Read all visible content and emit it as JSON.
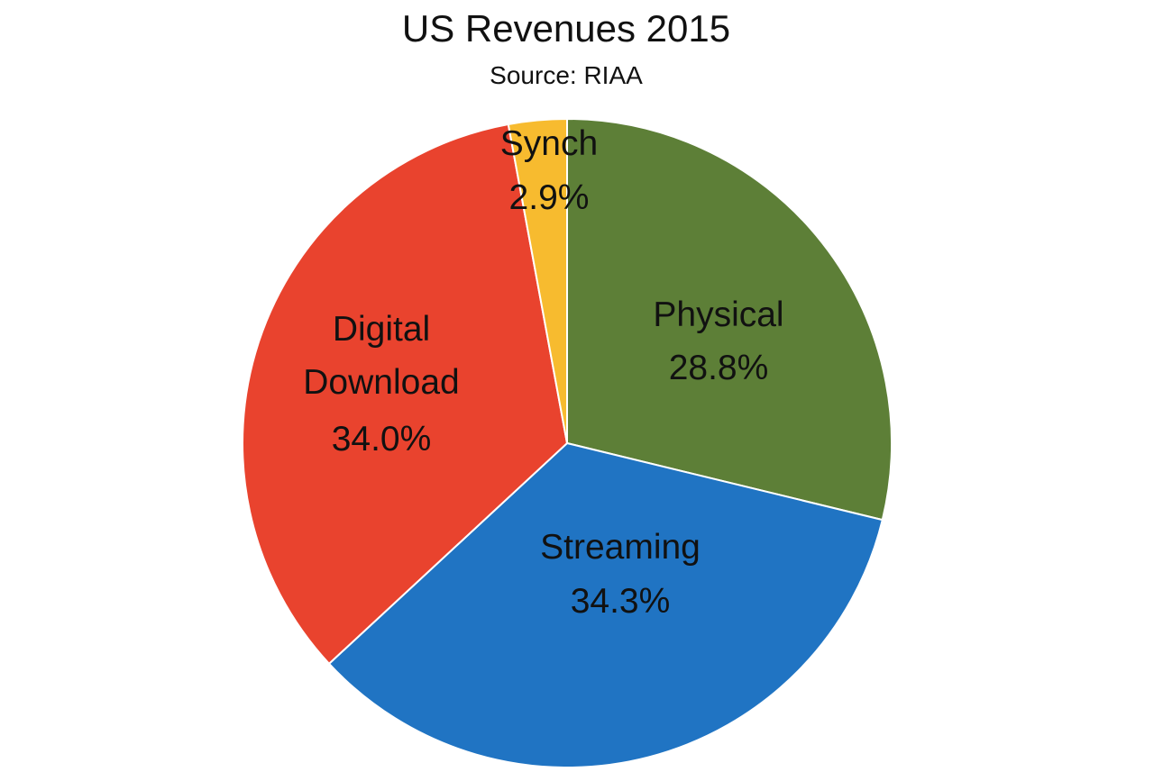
{
  "chart_data": {
    "type": "pie",
    "title": "US Revenues 2015",
    "subtitle": "Source: RIAA",
    "start_angle_deg": 0,
    "direction": "clockwise",
    "slices": [
      {
        "name": "Physical",
        "line1": "Physical",
        "line2": "",
        "value": 28.8,
        "value_label": "28.8%",
        "color": "#5d7f37"
      },
      {
        "name": "Streaming",
        "line1": "Streaming",
        "line2": "",
        "value": 34.3,
        "value_label": "34.3%",
        "color": "#2074c3"
      },
      {
        "name": "Digital Download",
        "line1": "Digital",
        "line2": "Download",
        "value": 34.0,
        "value_label": "34.0%",
        "color": "#e9432e"
      },
      {
        "name": "Synch",
        "line1": "Synch",
        "line2": "",
        "value": 2.9,
        "value_label": "2.9%",
        "color": "#f7bb2f"
      }
    ]
  }
}
